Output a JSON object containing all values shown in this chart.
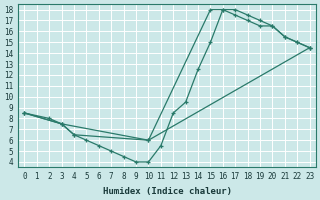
{
  "xlabel": "Humidex (Indice chaleur)",
  "bg_color": "#cce8e8",
  "grid_color": "#ffffff",
  "line_color": "#2a7a6a",
  "xlim": [
    -0.5,
    23.5
  ],
  "ylim": [
    3.5,
    18.5
  ],
  "xticks": [
    0,
    1,
    2,
    3,
    4,
    5,
    6,
    7,
    8,
    9,
    10,
    11,
    12,
    13,
    14,
    15,
    16,
    17,
    18,
    19,
    20,
    21,
    22,
    23
  ],
  "yticks": [
    4,
    5,
    6,
    7,
    8,
    9,
    10,
    11,
    12,
    13,
    14,
    15,
    16,
    17,
    18
  ],
  "line1_x": [
    0,
    2,
    3,
    4,
    5,
    6,
    7,
    8,
    9,
    10,
    11,
    12,
    13,
    14,
    15,
    16,
    17,
    18,
    19,
    20,
    21,
    22,
    23
  ],
  "line1_y": [
    8.5,
    8.0,
    7.5,
    6.5,
    6.0,
    5.5,
    5.0,
    4.5,
    4.0,
    4.0,
    5.5,
    8.5,
    9.5,
    12.5,
    15.0,
    18.0,
    18.0,
    17.5,
    17.0,
    16.5,
    15.5,
    15.0,
    14.5
  ],
  "line2_x": [
    0,
    3,
    10,
    15,
    16,
    17,
    18,
    19,
    20,
    21,
    22,
    23
  ],
  "line2_y": [
    8.5,
    7.5,
    6.0,
    18.0,
    18.0,
    17.5,
    17.0,
    16.5,
    16.5,
    15.5,
    15.0,
    14.5
  ],
  "line3_x": [
    0,
    3,
    4,
    10,
    23
  ],
  "line3_y": [
    8.5,
    7.5,
    6.5,
    6.0,
    14.5
  ]
}
